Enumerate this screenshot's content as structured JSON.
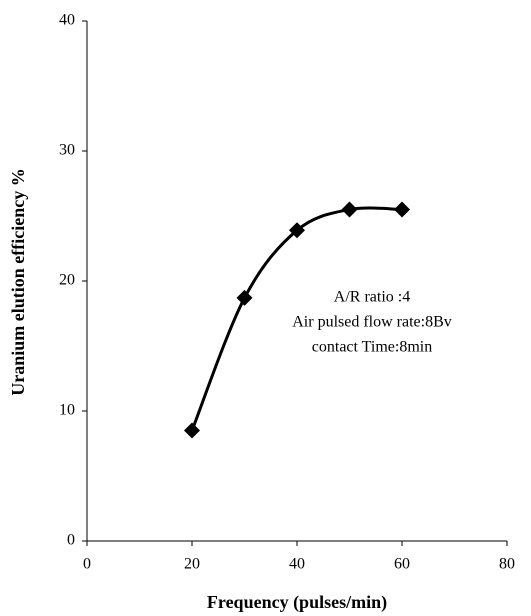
{
  "chart_data": {
    "type": "scatter",
    "x_label": "Frequency (pulses/min)",
    "y_label": "Uranium  elution efficiency %",
    "x": [
      20,
      30,
      40,
      50,
      60
    ],
    "series": [
      {
        "color": "#000000",
        "values": [
          8.5,
          18.7,
          23.9,
          25.5,
          25.5
        ]
      }
    ],
    "xlim": [
      0,
      80
    ],
    "xticks": [
      0,
      20,
      40,
      60,
      80
    ],
    "ylim": [
      0,
      40
    ],
    "yticks": [
      0,
      10,
      20,
      30,
      40
    ],
    "grid": false,
    "annotations": [
      "A/R ratio :4",
      "Air pulsed flow rate:8Bv",
      "contact Time:8min"
    ]
  }
}
